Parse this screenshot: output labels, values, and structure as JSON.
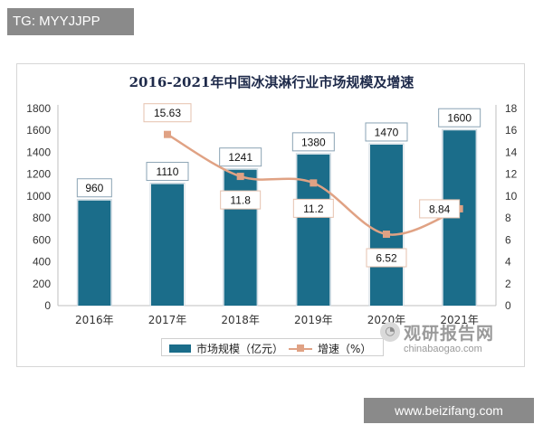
{
  "watermark_top": "TG: MYYJJPP",
  "watermark_bottom": "www.beizifang.com",
  "brand": {
    "title": "观研报告网",
    "url": "chinabaogao.com"
  },
  "colors": {
    "bar": "#1b6d8a",
    "line": "#e0a284",
    "axis": "#333333"
  },
  "chart_data": {
    "type": "bar",
    "title": "2016-2021年中国冰淇淋行业市场规模及增速",
    "categories": [
      "2016年",
      "2017年",
      "2018年",
      "2019年",
      "2020年",
      "2021年"
    ],
    "series": [
      {
        "name": "市场规模（亿元）",
        "type": "bar",
        "axis": "left",
        "values": [
          960,
          1110,
          1241,
          1380,
          1470,
          1600
        ],
        "labels": [
          "960",
          "1110",
          "1241",
          "1380",
          "1470",
          "1600"
        ]
      },
      {
        "name": "增速（%）",
        "type": "line",
        "axis": "right",
        "values": [
          null,
          15.63,
          11.8,
          11.2,
          6.52,
          8.84
        ],
        "labels": [
          "",
          "15.63",
          "11.8",
          "11.2",
          "6.52",
          "8.84"
        ]
      }
    ],
    "y_left": {
      "min": 0,
      "max": 1800,
      "ticks": [
        "0",
        "200",
        "400",
        "600",
        "800",
        "1000",
        "1200",
        "1400",
        "1600",
        "1800"
      ]
    },
    "y_right": {
      "min": 0,
      "max": 18,
      "ticks": [
        "0",
        "2",
        "4",
        "6",
        "8",
        "10",
        "12",
        "14",
        "16",
        "18"
      ]
    },
    "grid": false,
    "legend_position": "bottom"
  }
}
